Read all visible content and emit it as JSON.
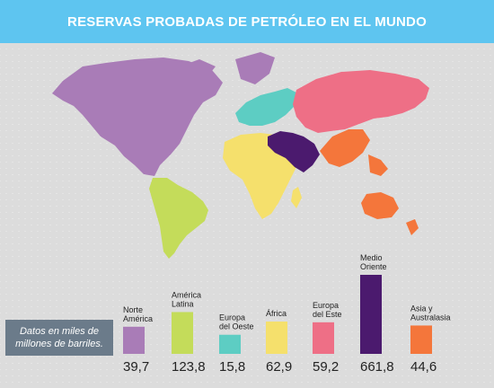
{
  "title": "RESERVAS PROBADAS DE PETRÓLEO EN EL MUNDO",
  "note": "Datos en miles de millones de barriles.",
  "colors": {
    "title_bar": "#5ec5f0",
    "note_box": "#6b7b8a",
    "background": "#dcdcdc"
  },
  "map_regions": [
    {
      "name": "Norte América",
      "color": "#a97cb7"
    },
    {
      "name": "América Latina",
      "color": "#c4dc5a"
    },
    {
      "name": "Europa del Oeste",
      "color": "#5dcdc3"
    },
    {
      "name": "África",
      "color": "#f5e06c"
    },
    {
      "name": "Europa del Este",
      "color": "#ee6f86"
    },
    {
      "name": "Medio Oriente",
      "color": "#4b1a6e"
    },
    {
      "name": "Asia y Australasia",
      "color": "#f4763b"
    }
  ],
  "chart_data": {
    "type": "bar",
    "title": "RESERVAS PROBADAS DE PETRÓLEO EN EL MUNDO",
    "unit": "miles de millones de barriles",
    "categories": [
      "Norte América",
      "América Latina",
      "Europa del Oeste",
      "África",
      "Europa del Este",
      "Medio Oriente",
      "Asia y Australasia"
    ],
    "category_labels": [
      [
        "Norte",
        "América"
      ],
      [
        "América",
        "Latina"
      ],
      [
        "Europa",
        "del Oeste"
      ],
      [
        "África"
      ],
      [
        "Europa",
        "del Este"
      ],
      [
        "Medio",
        "Oriente"
      ],
      [
        "Asia y",
        "Australasia"
      ]
    ],
    "values": [
      39.7,
      123.8,
      15.8,
      62.9,
      59.2,
      661.8,
      44.6
    ],
    "value_labels": [
      "39,7",
      "123,8",
      "15,8",
      "62,9",
      "59,2",
      "661,8",
      "44,6"
    ],
    "colors": [
      "#a97cb7",
      "#c4dc5a",
      "#5dcdc3",
      "#f5e06c",
      "#ee6f86",
      "#4b1a6e",
      "#f4763b"
    ]
  }
}
